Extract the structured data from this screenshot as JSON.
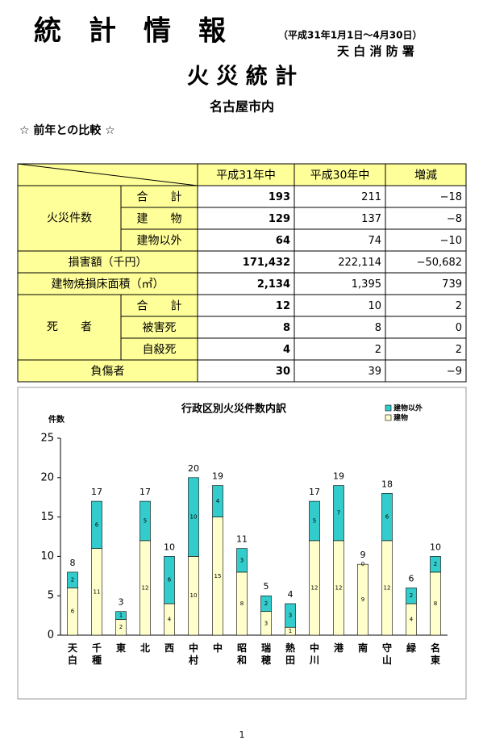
{
  "header": {
    "title": "統　計　情　報",
    "period": "（平成31年1月1日～4月30日）",
    "office": "天 白 消 防 署",
    "subtitle": "火 災 統 計",
    "area": "名古屋市内",
    "section": "☆ 前年との比較 ☆"
  },
  "table": {
    "header": [
      "平成31年中",
      "平成30年中",
      "増減"
    ],
    "groups": [
      {
        "label": "火災件数",
        "rows": [
          {
            "label": "合　　計",
            "cells": [
              "193",
              "211",
              "−18"
            ]
          },
          {
            "label": "建　　物",
            "cells": [
              "129",
              "137",
              "−8"
            ]
          },
          {
            "label": "建物以外",
            "cells": [
              "64",
              "74",
              "−10"
            ]
          }
        ]
      },
      {
        "label": "損害額（千円）",
        "cells": [
          "171,432",
          "222,114",
          "−50,682"
        ]
      },
      {
        "label": "建物焼損床面積（㎡）",
        "cells": [
          "2,134",
          "1,395",
          "739"
        ]
      },
      {
        "label": "死　　者",
        "rows": [
          {
            "label": "合　　計",
            "cells": [
              "12",
              "10",
              "2"
            ]
          },
          {
            "label": "被害死",
            "cells": [
              "8",
              "8",
              "0"
            ]
          },
          {
            "label": "自殺死",
            "cells": [
              "4",
              "2",
              "2"
            ]
          }
        ]
      },
      {
        "label": "負傷者",
        "cells": [
          "30",
          "39",
          "−9"
        ]
      }
    ]
  },
  "chart_data": {
    "type": "stacked_bar",
    "title": "行政区別火災件数内訳",
    "y_label": "件数",
    "categories": [
      "天白",
      "千種",
      "東",
      "北",
      "西",
      "中村",
      "中",
      "昭和",
      "瑞穂",
      "熱田",
      "中川",
      "港",
      "南",
      "守山",
      "緑",
      "名東"
    ],
    "series": [
      {
        "name": "建物",
        "color": "#ffffcc",
        "values": [
          6,
          11,
          2,
          12,
          4,
          10,
          15,
          8,
          3,
          1,
          12,
          12,
          9,
          12,
          4,
          8
        ]
      },
      {
        "name": "建物以外",
        "color": "#33cccc",
        "values": [
          2,
          6,
          1,
          5,
          6,
          10,
          4,
          3,
          2,
          3,
          5,
          7,
          0,
          6,
          2,
          2
        ]
      }
    ],
    "totals": [
      8,
      17,
      3,
      17,
      10,
      20,
      19,
      11,
      5,
      4,
      17,
      19,
      9,
      18,
      6,
      10
    ],
    "ylim": [
      0,
      25
    ],
    "yticks": [
      0,
      5,
      10,
      15,
      20,
      25
    ],
    "legend": "top-right"
  },
  "footer": {
    "page": "1"
  }
}
